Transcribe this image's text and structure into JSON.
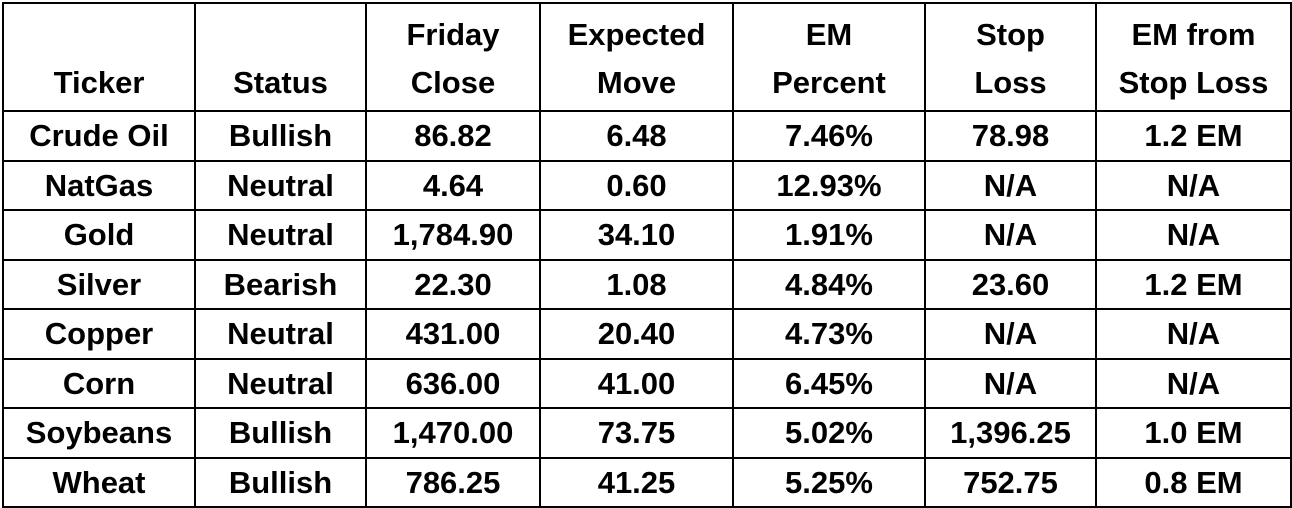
{
  "columns": [
    {
      "line1": "",
      "line2": "Ticker"
    },
    {
      "line1": "",
      "line2": "Status"
    },
    {
      "line1": "Friday",
      "line2": "Close"
    },
    {
      "line1": "Expected",
      "line2": "Move"
    },
    {
      "line1": "EM",
      "line2": "Percent"
    },
    {
      "line1": "Stop",
      "line2": "Loss"
    },
    {
      "line1": "EM from",
      "line2": "Stop Loss"
    }
  ],
  "rows": [
    [
      "Crude Oil",
      "Bullish",
      "86.82",
      "6.48",
      "7.46%",
      "78.98",
      "1.2 EM"
    ],
    [
      "NatGas",
      "Neutral",
      "4.64",
      "0.60",
      "12.93%",
      "N/A",
      "N/A"
    ],
    [
      "Gold",
      "Neutral",
      "1,784.90",
      "34.10",
      "1.91%",
      "N/A",
      "N/A"
    ],
    [
      "Silver",
      "Bearish",
      "22.30",
      "1.08",
      "4.84%",
      "23.60",
      "1.2 EM"
    ],
    [
      "Copper",
      "Neutral",
      "431.00",
      "20.40",
      "4.73%",
      "N/A",
      "N/A"
    ],
    [
      "Corn",
      "Neutral",
      "636.00",
      "41.00",
      "6.45%",
      "N/A",
      "N/A"
    ],
    [
      "Soybeans",
      "Bullish",
      "1,470.00",
      "73.75",
      "5.02%",
      "1,396.25",
      "1.0 EM"
    ],
    [
      "Wheat",
      "Bullish",
      "786.25",
      "41.25",
      "5.25%",
      "752.75",
      "0.8 EM"
    ]
  ]
}
